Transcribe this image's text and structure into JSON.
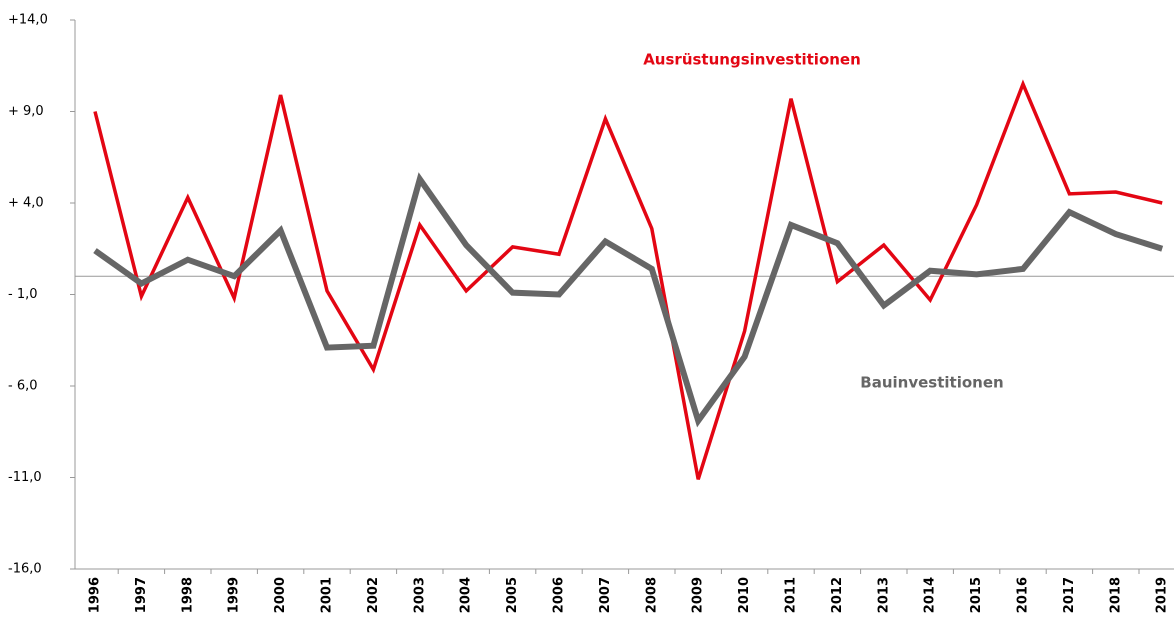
{
  "chart_data": {
    "type": "line",
    "categories": [
      "1996",
      "1997",
      "1998",
      "1999",
      "2000",
      "2001",
      "2002",
      "2003",
      "2004",
      "2005",
      "2006",
      "2007",
      "2008",
      "2009",
      "2010",
      "2011",
      "2012",
      "2013",
      "2014",
      "2015",
      "2016",
      "2017",
      "2018",
      "2019"
    ],
    "series": [
      {
        "name": "Ausrüstungsinvestitionen",
        "color": "#e30613",
        "values": [
          9.0,
          -1.1,
          4.3,
          -1.2,
          9.9,
          -0.8,
          -5.1,
          2.8,
          -0.8,
          1.6,
          1.2,
          8.6,
          2.6,
          -11.1,
          -3.0,
          9.7,
          -0.3,
          1.7,
          -1.3,
          3.9,
          10.5,
          4.5,
          4.6,
          4.0
        ]
      },
      {
        "name": "Bauinvestitionen",
        "color": "#666666",
        "values": [
          1.4,
          -0.4,
          0.9,
          0.0,
          2.5,
          -3.9,
          -3.8,
          5.3,
          1.7,
          -0.9,
          -1.0,
          1.9,
          0.4,
          -7.9,
          -4.4,
          2.8,
          1.8,
          -1.6,
          0.3,
          0.1,
          0.4,
          3.5,
          2.3,
          1.5
        ]
      }
    ],
    "ylim": [
      -16,
      14
    ],
    "yticks": [
      {
        "value": -16,
        "label": "-16,0"
      },
      {
        "value": -11,
        "label": "-11,0"
      },
      {
        "value": -6,
        "label": "- 6,0"
      },
      {
        "value": -1,
        "label": "- 1,0"
      },
      {
        "value": 4,
        "label": "+ 4,0"
      },
      {
        "value": 9,
        "label": "+ 9,0"
      },
      {
        "value": 14,
        "label": "+14,0"
      }
    ]
  }
}
